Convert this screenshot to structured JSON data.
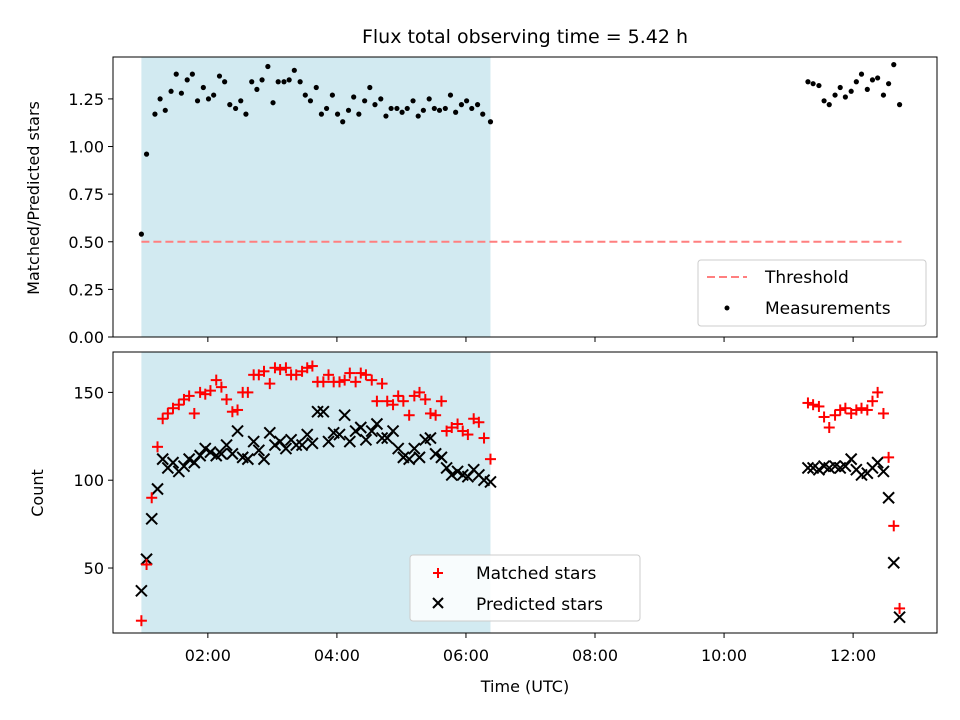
{
  "chart_data": [
    {
      "type": "scatter",
      "title": "Flux total observing time = 5.42 h",
      "xlabel": "",
      "ylabel": "Matched/Predicted stars",
      "ylim": [
        0,
        1.47
      ],
      "yticks": [
        {
          "value": 0.0,
          "label": "0.00"
        },
        {
          "value": 0.25,
          "label": "0.25"
        },
        {
          "value": 0.5,
          "label": "0.50"
        },
        {
          "value": 0.75,
          "label": "0.75"
        },
        {
          "value": 1.0,
          "label": "1.00"
        },
        {
          "value": 1.25,
          "label": "1.25"
        }
      ],
      "shaded_interval_hours": [
        0.97,
        6.38
      ],
      "threshold": {
        "name": "Threshold",
        "value": 0.5,
        "x_range_hours": [
          0.97,
          12.75
        ],
        "color": "#ff7f7f"
      },
      "legend": {
        "placement": "lower-right",
        "entries": [
          "Threshold",
          "Measurements"
        ]
      },
      "series": [
        {
          "name": "Measurements",
          "color": "#000000",
          "x_hours": [
            0.97,
            1.05,
            1.18,
            1.26,
            1.34,
            1.43,
            1.51,
            1.59,
            1.68,
            1.76,
            1.84,
            1.93,
            2.01,
            2.09,
            2.18,
            2.26,
            2.34,
            2.43,
            2.51,
            2.59,
            2.68,
            2.76,
            2.84,
            2.93,
            3.01,
            3.09,
            3.18,
            3.26,
            3.34,
            3.43,
            3.51,
            3.59,
            3.68,
            3.76,
            3.84,
            3.93,
            4.01,
            4.09,
            4.18,
            4.26,
            4.34,
            4.43,
            4.51,
            4.59,
            4.68,
            4.76,
            4.84,
            4.93,
            5.01,
            5.09,
            5.18,
            5.26,
            5.34,
            5.43,
            5.51,
            5.59,
            5.68,
            5.76,
            5.84,
            5.93,
            6.01,
            6.09,
            6.18,
            6.26,
            6.38,
            11.3,
            11.38,
            11.47,
            11.55,
            11.63,
            11.72,
            11.8,
            11.88,
            11.97,
            12.05,
            12.13,
            12.22,
            12.3,
            12.38,
            12.47,
            12.55,
            12.63,
            12.72
          ],
          "y": [
            0.54,
            0.96,
            1.17,
            1.25,
            1.19,
            1.29,
            1.38,
            1.28,
            1.35,
            1.38,
            1.24,
            1.31,
            1.25,
            1.27,
            1.37,
            1.34,
            1.22,
            1.2,
            1.24,
            1.17,
            1.34,
            1.3,
            1.35,
            1.42,
            1.23,
            1.34,
            1.34,
            1.35,
            1.4,
            1.34,
            1.27,
            1.24,
            1.31,
            1.17,
            1.2,
            1.27,
            1.17,
            1.13,
            1.19,
            1.26,
            1.17,
            1.24,
            1.31,
            1.22,
            1.25,
            1.16,
            1.2,
            1.2,
            1.18,
            1.2,
            1.24,
            1.16,
            1.19,
            1.25,
            1.2,
            1.19,
            1.2,
            1.27,
            1.18,
            1.22,
            1.24,
            1.2,
            1.22,
            1.17,
            1.13,
            1.34,
            1.33,
            1.32,
            1.24,
            1.22,
            1.27,
            1.31,
            1.26,
            1.29,
            1.34,
            1.38,
            1.3,
            1.35,
            1.36,
            1.27,
            1.33,
            1.43,
            1.22
          ]
        }
      ]
    },
    {
      "type": "scatter",
      "title": "",
      "xlabel": "Time (UTC)",
      "ylabel": "Count",
      "ylim": [
        13,
        173
      ],
      "yticks": [
        {
          "value": 50,
          "label": "50"
        },
        {
          "value": 100,
          "label": "100"
        },
        {
          "value": 150,
          "label": "150"
        }
      ],
      "xlim_hours": [
        0.53,
        13.3
      ],
      "xticks": [
        {
          "value": 2,
          "label": "02:00"
        },
        {
          "value": 4,
          "label": "04:00"
        },
        {
          "value": 6,
          "label": "06:00"
        },
        {
          "value": 8,
          "label": "08:00"
        },
        {
          "value": 10,
          "label": "10:00"
        },
        {
          "value": 12,
          "label": "12:00"
        }
      ],
      "shaded_interval_hours": [
        0.97,
        6.38
      ],
      "legend": {
        "placement": "lower-center",
        "entries": [
          "Matched stars",
          "Predicted stars"
        ]
      },
      "series": [
        {
          "name": "Matched stars",
          "marker": "plus",
          "color": "#ff0000",
          "x_hours": [
            0.97,
            1.05,
            1.13,
            1.22,
            1.3,
            1.38,
            1.46,
            1.55,
            1.63,
            1.71,
            1.79,
            1.88,
            1.96,
            2.04,
            2.13,
            2.21,
            2.29,
            2.38,
            2.46,
            2.54,
            2.62,
            2.71,
            2.79,
            2.87,
            2.96,
            3.04,
            3.12,
            3.21,
            3.29,
            3.37,
            3.46,
            3.54,
            3.62,
            3.7,
            3.79,
            3.87,
            3.95,
            4.04,
            4.12,
            4.2,
            4.29,
            4.37,
            4.45,
            4.54,
            4.62,
            4.7,
            4.78,
            4.87,
            4.95,
            5.03,
            5.12,
            5.2,
            5.28,
            5.37,
            5.45,
            5.53,
            5.62,
            5.7,
            5.78,
            5.87,
            5.95,
            6.03,
            6.12,
            6.2,
            6.28,
            6.38,
            11.3,
            11.38,
            11.47,
            11.55,
            11.63,
            11.72,
            11.8,
            11.88,
            11.97,
            12.05,
            12.13,
            12.22,
            12.3,
            12.38,
            12.47,
            12.55,
            12.63,
            12.72
          ],
          "y": [
            20,
            52,
            90,
            119,
            135,
            138,
            141,
            143,
            146,
            148,
            138,
            150,
            149,
            151,
            157,
            153,
            146,
            139,
            140,
            150,
            150,
            160,
            160,
            162,
            155,
            164,
            163,
            164,
            160,
            160,
            162,
            164,
            165,
            156,
            156,
            160,
            156,
            156,
            157,
            161,
            156,
            161,
            160,
            157,
            145,
            155,
            145,
            143,
            148,
            145,
            137,
            148,
            150,
            146,
            138,
            137,
            145,
            128,
            130,
            132,
            128,
            126,
            135,
            133,
            124,
            112,
            144,
            143,
            142,
            136,
            130,
            137,
            140,
            141,
            138,
            140,
            141,
            140,
            145,
            150,
            138,
            113,
            74,
            27
          ]
        },
        {
          "name": "Predicted stars",
          "marker": "x",
          "color": "#000000",
          "x_hours": [
            0.97,
            1.05,
            1.13,
            1.22,
            1.3,
            1.38,
            1.46,
            1.55,
            1.63,
            1.71,
            1.79,
            1.88,
            1.96,
            2.04,
            2.13,
            2.21,
            2.29,
            2.38,
            2.46,
            2.54,
            2.62,
            2.71,
            2.79,
            2.87,
            2.96,
            3.04,
            3.12,
            3.21,
            3.29,
            3.37,
            3.46,
            3.54,
            3.62,
            3.7,
            3.79,
            3.87,
            3.95,
            4.04,
            4.12,
            4.2,
            4.29,
            4.37,
            4.45,
            4.54,
            4.62,
            4.7,
            4.78,
            4.87,
            4.95,
            5.03,
            5.12,
            5.2,
            5.28,
            5.37,
            5.45,
            5.53,
            5.62,
            5.7,
            5.78,
            5.87,
            5.95,
            6.03,
            6.12,
            6.2,
            6.28,
            6.38,
            11.3,
            11.38,
            11.47,
            11.55,
            11.63,
            11.72,
            11.8,
            11.88,
            11.97,
            12.05,
            12.13,
            12.22,
            12.3,
            12.38,
            12.47,
            12.55,
            12.63,
            12.72
          ],
          "y": [
            37,
            55,
            78,
            95,
            112,
            107,
            110,
            105,
            108,
            112,
            110,
            114,
            118,
            116,
            114,
            115,
            120,
            115,
            128,
            113,
            112,
            122,
            117,
            112,
            127,
            120,
            122,
            118,
            123,
            120,
            120,
            126,
            121,
            139,
            139,
            122,
            127,
            126,
            137,
            122,
            128,
            130,
            123,
            128,
            132,
            124,
            124,
            128,
            118,
            113,
            112,
            118,
            113,
            123,
            124,
            115,
            113,
            107,
            103,
            105,
            103,
            102,
            106,
            103,
            100,
            99,
            107,
            107,
            106,
            108,
            107,
            108,
            107,
            108,
            112,
            106,
            103,
            104,
            107,
            110,
            105,
            90,
            53,
            22
          ]
        }
      ]
    }
  ]
}
